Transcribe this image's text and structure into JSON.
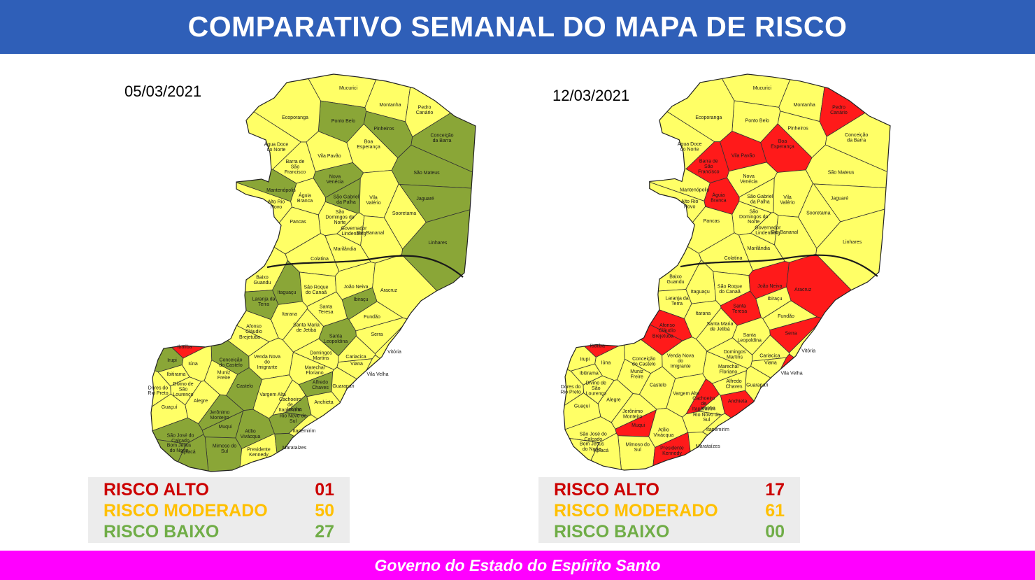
{
  "header": {
    "title": "COMPARATIVO SEMANAL DO MAPA DE RISCO"
  },
  "colors": {
    "header_bg": "#2f5fb8",
    "footer_bg": "#ff00ff",
    "risk_high": "#ff1a1a",
    "risk_moderate": "#ffff66",
    "risk_low": "#8aa637",
    "legend_high": "#cc0000",
    "legend_moderate": "#ffc000",
    "legend_low": "#70ad47"
  },
  "maps": [
    {
      "date": "05/03/2021",
      "legend": [
        {
          "label": "RISCO ALTO",
          "value": "01",
          "level": "high"
        },
        {
          "label": "RISCO MODERADO",
          "value": "50",
          "level": "moderate"
        },
        {
          "label": "RISCO BAIXO",
          "value": "27",
          "level": "low"
        }
      ],
      "municipalities": [
        {
          "name": "Mucurici",
          "risk": "moderate"
        },
        {
          "name": "Montanha",
          "risk": "moderate"
        },
        {
          "name": "Pedro Canário",
          "risk": "moderate"
        },
        {
          "name": "Ponto Belo",
          "risk": "low"
        },
        {
          "name": "Ecoporanga",
          "risk": "moderate"
        },
        {
          "name": "Pinheiros",
          "risk": "low"
        },
        {
          "name": "Conceição da Barra",
          "risk": "low"
        },
        {
          "name": "Água Doce do Norte",
          "risk": "moderate"
        },
        {
          "name": "Boa Esperança",
          "risk": "moderate"
        },
        {
          "name": "Barra de São Francisco",
          "risk": "moderate"
        },
        {
          "name": "Vila Pavão",
          "risk": "moderate"
        },
        {
          "name": "São Mateus",
          "risk": "low"
        },
        {
          "name": "Nova Venécia",
          "risk": "low"
        },
        {
          "name": "Mantenópolis",
          "risk": "low"
        },
        {
          "name": "Águia Branca",
          "risk": "moderate"
        },
        {
          "name": "São Gabriel da Palha",
          "risk": "low"
        },
        {
          "name": "Vila Valério",
          "risk": "moderate"
        },
        {
          "name": "Jaguaré",
          "risk": "low"
        },
        {
          "name": "Alto Rio Novo",
          "risk": "moderate"
        },
        {
          "name": "Sooretama",
          "risk": "moderate"
        },
        {
          "name": "São Domingos do Norte",
          "risk": "moderate"
        },
        {
          "name": "Pancas",
          "risk": "moderate"
        },
        {
          "name": "Governador Lindenberg",
          "risk": "moderate"
        },
        {
          "name": "Rio Bananal",
          "risk": "moderate"
        },
        {
          "name": "Linhares",
          "risk": "low"
        },
        {
          "name": "Marilândia",
          "risk": "moderate"
        },
        {
          "name": "Colatina",
          "risk": "moderate"
        },
        {
          "name": "Baixo Guandu",
          "risk": "moderate"
        },
        {
          "name": "Itaguaçu",
          "risk": "low"
        },
        {
          "name": "São Roque do Canaã",
          "risk": "moderate"
        },
        {
          "name": "João Neiva",
          "risk": "moderate"
        },
        {
          "name": "Aracruz",
          "risk": "moderate"
        },
        {
          "name": "Laranja da Terra",
          "risk": "low"
        },
        {
          "name": "Ibiraçu",
          "risk": "low"
        },
        {
          "name": "Santa Teresa",
          "risk": "moderate"
        },
        {
          "name": "Itarana",
          "risk": "moderate"
        },
        {
          "name": "Fundão",
          "risk": "moderate"
        },
        {
          "name": "Afonso Cláudio",
          "risk": "moderate"
        },
        {
          "name": "Santa Maria de Jetibá",
          "risk": "moderate"
        },
        {
          "name": "Serra",
          "risk": "moderate"
        },
        {
          "name": "Brejetuba",
          "risk": "moderate"
        },
        {
          "name": "Santa Leopoldina",
          "risk": "low"
        },
        {
          "name": "Ibatiba",
          "risk": "high"
        },
        {
          "name": "Domingos Martins",
          "risk": "moderate"
        },
        {
          "name": "Vitória",
          "risk": "moderate"
        },
        {
          "name": "Iúna",
          "risk": "moderate"
        },
        {
          "name": "Irupi",
          "risk": "low"
        },
        {
          "name": "Conceição do Castelo",
          "risk": "low"
        },
        {
          "name": "Venda Nova do Imigrante",
          "risk": "moderate"
        },
        {
          "name": "Cariacica",
          "risk": "moderate"
        },
        {
          "name": "Ibitirama",
          "risk": "moderate"
        },
        {
          "name": "Muniz Freire",
          "risk": "moderate"
        },
        {
          "name": "Marechal Floriano",
          "risk": "moderate"
        },
        {
          "name": "Viana",
          "risk": "moderate"
        },
        {
          "name": "Vila Velha",
          "risk": "moderate"
        },
        {
          "name": "Divino de São Lourenço",
          "risk": "moderate"
        },
        {
          "name": "Castelo",
          "risk": "low"
        },
        {
          "name": "Alfredo Chaves",
          "risk": "low"
        },
        {
          "name": "Guarapari",
          "risk": "moderate"
        },
        {
          "name": "Dores do Rio Preto",
          "risk": "moderate"
        },
        {
          "name": "Alegre",
          "risk": "moderate"
        },
        {
          "name": "Vargem Alta",
          "risk": "moderate"
        },
        {
          "name": "Cachoeiro de Itapemirim",
          "risk": "moderate"
        },
        {
          "name": "Guaçuí",
          "risk": "moderate"
        },
        {
          "name": "Iconha",
          "risk": "low"
        },
        {
          "name": "Anchieta",
          "risk": "moderate"
        },
        {
          "name": "Jerônimo Monteiro",
          "risk": "low"
        },
        {
          "name": "Rio Novo do Sul",
          "risk": "low"
        },
        {
          "name": "Muqui",
          "risk": "low"
        },
        {
          "name": "Atílio Vivácqua",
          "risk": "low"
        },
        {
          "name": "Itapemirim",
          "risk": "moderate"
        },
        {
          "name": "São José do Calçado",
          "risk": "low"
        },
        {
          "name": "Bom Jesus do Norte",
          "risk": "low"
        },
        {
          "name": "Mimoso do Sul",
          "risk": "low"
        },
        {
          "name": "Presidente Kennedy",
          "risk": "moderate"
        },
        {
          "name": "Marataízes",
          "risk": "low"
        },
        {
          "name": "Apiacá",
          "risk": "low"
        }
      ]
    },
    {
      "date": "12/03/2021",
      "legend": [
        {
          "label": "RISCO ALTO",
          "value": "17",
          "level": "high"
        },
        {
          "label": "RISCO MODERADO",
          "value": "61",
          "level": "moderate"
        },
        {
          "label": "RISCO BAIXO",
          "value": "00",
          "level": "low"
        }
      ],
      "municipalities": [
        {
          "name": "Mucurici",
          "risk": "moderate"
        },
        {
          "name": "Montanha",
          "risk": "moderate"
        },
        {
          "name": "Pedro Canário",
          "risk": "high"
        },
        {
          "name": "Ponto Belo",
          "risk": "moderate"
        },
        {
          "name": "Ecoporanga",
          "risk": "moderate"
        },
        {
          "name": "Pinheiros",
          "risk": "moderate"
        },
        {
          "name": "Conceição da Barra",
          "risk": "moderate"
        },
        {
          "name": "Água Doce do Norte",
          "risk": "moderate"
        },
        {
          "name": "Boa Esperança",
          "risk": "high"
        },
        {
          "name": "Barra de São Francisco",
          "risk": "high"
        },
        {
          "name": "Vila Pavão",
          "risk": "high"
        },
        {
          "name": "São Mateus",
          "risk": "moderate"
        },
        {
          "name": "Nova Venécia",
          "risk": "moderate"
        },
        {
          "name": "Mantenópolis",
          "risk": "moderate"
        },
        {
          "name": "Águia Branca",
          "risk": "high"
        },
        {
          "name": "São Gabriel da Palha",
          "risk": "moderate"
        },
        {
          "name": "Vila Valério",
          "risk": "moderate"
        },
        {
          "name": "Jaguaré",
          "risk": "moderate"
        },
        {
          "name": "Alto Rio Novo",
          "risk": "moderate"
        },
        {
          "name": "Sooretama",
          "risk": "moderate"
        },
        {
          "name": "São Domingos do Norte",
          "risk": "moderate"
        },
        {
          "name": "Pancas",
          "risk": "moderate"
        },
        {
          "name": "Governador Lindenberg",
          "risk": "moderate"
        },
        {
          "name": "Rio Bananal",
          "risk": "moderate"
        },
        {
          "name": "Linhares",
          "risk": "moderate"
        },
        {
          "name": "Marilândia",
          "risk": "moderate"
        },
        {
          "name": "Colatina",
          "risk": "moderate"
        },
        {
          "name": "Baixo Guandu",
          "risk": "moderate"
        },
        {
          "name": "Itaguaçu",
          "risk": "moderate"
        },
        {
          "name": "São Roque do Canaã",
          "risk": "moderate"
        },
        {
          "name": "João Neiva",
          "risk": "high"
        },
        {
          "name": "Aracruz",
          "risk": "high"
        },
        {
          "name": "Laranja da Terra",
          "risk": "moderate"
        },
        {
          "name": "Ibiraçu",
          "risk": "moderate"
        },
        {
          "name": "Santa Teresa",
          "risk": "high"
        },
        {
          "name": "Itarana",
          "risk": "moderate"
        },
        {
          "name": "Fundão",
          "risk": "moderate"
        },
        {
          "name": "Afonso Cláudio",
          "risk": "high"
        },
        {
          "name": "Santa Maria de Jetibá",
          "risk": "moderate"
        },
        {
          "name": "Serra",
          "risk": "high"
        },
        {
          "name": "Brejetuba",
          "risk": "high"
        },
        {
          "name": "Santa Leopoldina",
          "risk": "moderate"
        },
        {
          "name": "Ibatiba",
          "risk": "high"
        },
        {
          "name": "Domingos Martins",
          "risk": "moderate"
        },
        {
          "name": "Vitória",
          "risk": "moderate"
        },
        {
          "name": "Iúna",
          "risk": "moderate"
        },
        {
          "name": "Irupi",
          "risk": "moderate"
        },
        {
          "name": "Conceição do Castelo",
          "risk": "moderate"
        },
        {
          "name": "Venda Nova do Imigrante",
          "risk": "moderate"
        },
        {
          "name": "Cariacica",
          "risk": "moderate"
        },
        {
          "name": "Ibitirama",
          "risk": "moderate"
        },
        {
          "name": "Muniz Freire",
          "risk": "moderate"
        },
        {
          "name": "Marechal Floriano",
          "risk": "moderate"
        },
        {
          "name": "Viana",
          "risk": "moderate"
        },
        {
          "name": "Vila Velha",
          "risk": "high"
        },
        {
          "name": "Divino de São Lourenço",
          "risk": "moderate"
        },
        {
          "name": "Castelo",
          "risk": "moderate"
        },
        {
          "name": "Alfredo Chaves",
          "risk": "moderate"
        },
        {
          "name": "Guarapari",
          "risk": "moderate"
        },
        {
          "name": "Dores do Rio Preto",
          "risk": "moderate"
        },
        {
          "name": "Alegre",
          "risk": "moderate"
        },
        {
          "name": "Vargem Alta",
          "risk": "moderate"
        },
        {
          "name": "Cachoeiro de Itapemirim",
          "risk": "high"
        },
        {
          "name": "Guaçuí",
          "risk": "moderate"
        },
        {
          "name": "Iconha",
          "risk": "moderate"
        },
        {
          "name": "Anchieta",
          "risk": "high"
        },
        {
          "name": "Jerônimo Monteiro",
          "risk": "moderate"
        },
        {
          "name": "Rio Novo do Sul",
          "risk": "moderate"
        },
        {
          "name": "Muqui",
          "risk": "high"
        },
        {
          "name": "Atílio Vivácqua",
          "risk": "moderate"
        },
        {
          "name": "Itapemirim",
          "risk": "moderate"
        },
        {
          "name": "São José do Calçado",
          "risk": "moderate"
        },
        {
          "name": "Bom Jesus do Norte",
          "risk": "moderate"
        },
        {
          "name": "Mimoso do Sul",
          "risk": "moderate"
        },
        {
          "name": "Presidente Kennedy",
          "risk": "high"
        },
        {
          "name": "Marataízes",
          "risk": "moderate"
        },
        {
          "name": "Apiacá",
          "risk": "moderate"
        }
      ]
    }
  ],
  "footer": {
    "text": "Governo do Estado do Espírito Santo"
  }
}
